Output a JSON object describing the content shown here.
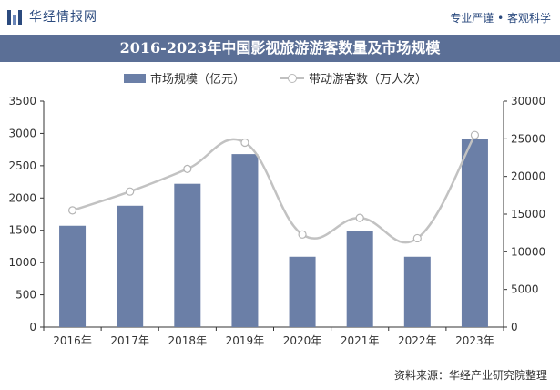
{
  "header": {
    "logo_text": "华经情报网",
    "slogan": "专业严谨 • 客观科学"
  },
  "footer": {
    "source": "资料来源：华经产业研究院整理"
  },
  "colors": {
    "bar": "#6b7fa7",
    "line": "#c2c2c2",
    "title_bg": "#5b6f96"
  },
  "chart_data": {
    "type": "bar",
    "title": "2016-2023年中国影视旅游游客数量及市场规模",
    "categories": [
      "2016年",
      "2017年",
      "2018年",
      "2019年",
      "2020年",
      "2021年",
      "2022年",
      "2023年"
    ],
    "series": [
      {
        "name": "市场规模（亿元）",
        "type": "bar",
        "axis": "left",
        "values": [
          1570,
          1880,
          2220,
          2680,
          1090,
          1490,
          1090,
          2920
        ]
      },
      {
        "name": "带动游客数（万人次）",
        "type": "line",
        "axis": "right",
        "smooth": true,
        "values": [
          15500,
          18000,
          21000,
          24500,
          12300,
          14500,
          11800,
          25500
        ]
      }
    ],
    "y_left": {
      "min": 0,
      "max": 3500,
      "ticks": [
        "0",
        "500",
        "1000",
        "1500",
        "2000",
        "2500",
        "3000",
        "3500"
      ]
    },
    "y_right": {
      "min": 0,
      "max": 30000,
      "ticks": [
        "0",
        "5000",
        "10000",
        "15000",
        "20000",
        "25000",
        "30000"
      ]
    },
    "legend_position": "top-center",
    "grid": false
  }
}
